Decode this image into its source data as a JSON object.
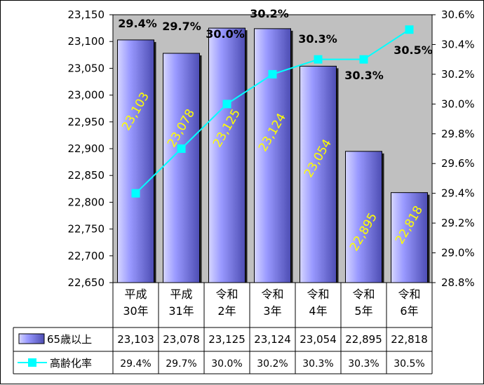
{
  "chart_data": {
    "type": "bar+line",
    "categories": [
      [
        "平成",
        "30年"
      ],
      [
        "平成",
        "31年"
      ],
      [
        "令和",
        "2年"
      ],
      [
        "令和",
        "3年"
      ],
      [
        "令和",
        "4年"
      ],
      [
        "令和",
        "5年"
      ],
      [
        "令和",
        "6年"
      ]
    ],
    "series": [
      {
        "name": "65歳以上",
        "type": "bar",
        "axis": "left",
        "values": [
          23103,
          23078,
          23125,
          23124,
          23054,
          22895,
          22818
        ],
        "labels": [
          "23,103",
          "23,078",
          "23,125",
          "23,124",
          "23,054",
          "22,895",
          "22,818"
        ],
        "table_values": [
          "23,103",
          "23,078",
          "23,125",
          "23,124",
          "23,054",
          "22,895",
          "22,818"
        ]
      },
      {
        "name": "高齢化率",
        "type": "line",
        "axis": "right",
        "values": [
          29.4,
          29.7,
          30.0,
          30.2,
          30.3,
          30.3,
          30.5
        ],
        "labels": [
          "29.4%",
          "29.7%",
          "30.0%",
          "30.2%",
          "30.3%",
          "30.3%",
          "30.5%"
        ],
        "table_values": [
          "29.4%",
          "29.7%",
          "30.0%",
          "30.2%",
          "30.3%",
          "30.3%",
          "30.5%"
        ]
      }
    ],
    "y_left": {
      "range": [
        22650,
        23150
      ],
      "ticks": [
        22650,
        22700,
        22750,
        22800,
        22850,
        22900,
        22950,
        23000,
        23050,
        23100,
        23150
      ],
      "tick_labels": [
        "22,650",
        "22,700",
        "22,750",
        "22,800",
        "22,850",
        "22,900",
        "22,950",
        "23,000",
        "23,050",
        "23,100",
        "23,150"
      ]
    },
    "y_right": {
      "range": [
        28.8,
        30.6
      ],
      "ticks": [
        28.8,
        29.0,
        29.2,
        29.4,
        29.6,
        29.8,
        30.0,
        30.2,
        30.4,
        30.6
      ],
      "tick_labels": [
        "28.8%",
        "29.0%",
        "29.2%",
        "29.4%",
        "29.6%",
        "29.8%",
        "30.0%",
        "30.2%",
        "30.4%",
        "30.6%"
      ]
    },
    "legend_placement": "data-table-bottom",
    "grid": false,
    "colors": {
      "plot_bg": "#c0c0c0",
      "bar_light": "#d6d6ff",
      "bar_mid": "#9999ff",
      "bar_dark": "#4d4db3",
      "line": "#00ffff",
      "bar_label": "#ffff00"
    }
  }
}
